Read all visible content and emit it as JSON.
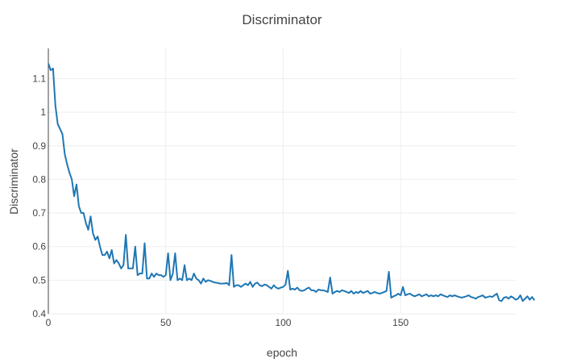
{
  "chart_data": {
    "type": "line",
    "title": "Discriminator",
    "xlabel": "epoch",
    "ylabel": "Discriminator",
    "xlim": [
      0,
      199
    ],
    "ylim": [
      0.4,
      1.19
    ],
    "xticks": [
      0,
      50,
      100,
      150
    ],
    "yticks": [
      0.4,
      0.5,
      0.6,
      0.7,
      0.8,
      0.9,
      1,
      1.1
    ],
    "ytick_labels": [
      "0.4",
      "0.5",
      "0.6",
      "0.7",
      "0.8",
      "0.9",
      "1",
      "1.1"
    ],
    "grid": true,
    "color": "#1f77b4",
    "series": [
      {
        "values": [
          1.145,
          1.125,
          1.13,
          1.02,
          0.965,
          0.95,
          0.935,
          0.875,
          0.845,
          0.82,
          0.8,
          0.75,
          0.785,
          0.72,
          0.7,
          0.7,
          0.67,
          0.65,
          0.69,
          0.64,
          0.62,
          0.63,
          0.6,
          0.575,
          0.575,
          0.585,
          0.565,
          0.59,
          0.55,
          0.56,
          0.55,
          0.535,
          0.545,
          0.635,
          0.535,
          0.535,
          0.535,
          0.6,
          0.515,
          0.52,
          0.52,
          0.61,
          0.505,
          0.505,
          0.52,
          0.51,
          0.52,
          0.515,
          0.515,
          0.51,
          0.515,
          0.58,
          0.5,
          0.52,
          0.58,
          0.5,
          0.505,
          0.5,
          0.545,
          0.5,
          0.505,
          0.5,
          0.52,
          0.505,
          0.5,
          0.49,
          0.505,
          0.495,
          0.5,
          0.498,
          0.495,
          0.493,
          0.492,
          0.49,
          0.49,
          0.49,
          0.492,
          0.485,
          0.575,
          0.48,
          0.485,
          0.485,
          0.48,
          0.485,
          0.49,
          0.485,
          0.495,
          0.48,
          0.49,
          0.493,
          0.485,
          0.482,
          0.487,
          0.485,
          0.48,
          0.475,
          0.485,
          0.478,
          0.475,
          0.478,
          0.48,
          0.487,
          0.528,
          0.472,
          0.475,
          0.472,
          0.478,
          0.47,
          0.468,
          0.47,
          0.475,
          0.478,
          0.47,
          0.47,
          0.465,
          0.472,
          0.47,
          0.47,
          0.468,
          0.465,
          0.508,
          0.46,
          0.465,
          0.468,
          0.465,
          0.47,
          0.468,
          0.465,
          0.462,
          0.468,
          0.46,
          0.465,
          0.462,
          0.468,
          0.462,
          0.465,
          0.468,
          0.46,
          0.462,
          0.465,
          0.462,
          0.46,
          0.462,
          0.465,
          0.468,
          0.525,
          0.448,
          0.452,
          0.455,
          0.46,
          0.455,
          0.48,
          0.455,
          0.458,
          0.46,
          0.455,
          0.452,
          0.455,
          0.458,
          0.452,
          0.455,
          0.458,
          0.452,
          0.455,
          0.452,
          0.455,
          0.452,
          0.458,
          0.455,
          0.452,
          0.45,
          0.455,
          0.452,
          0.455,
          0.452,
          0.45,
          0.448,
          0.45,
          0.452,
          0.455,
          0.45,
          0.448,
          0.445,
          0.45,
          0.452,
          0.455,
          0.448,
          0.45,
          0.452,
          0.45,
          0.455,
          0.46,
          0.44,
          0.438,
          0.448,
          0.45,
          0.445,
          0.452,
          0.448,
          0.442,
          0.445,
          0.455,
          0.438,
          0.445,
          0.452,
          0.442,
          0.45,
          0.44
        ]
      }
    ]
  }
}
